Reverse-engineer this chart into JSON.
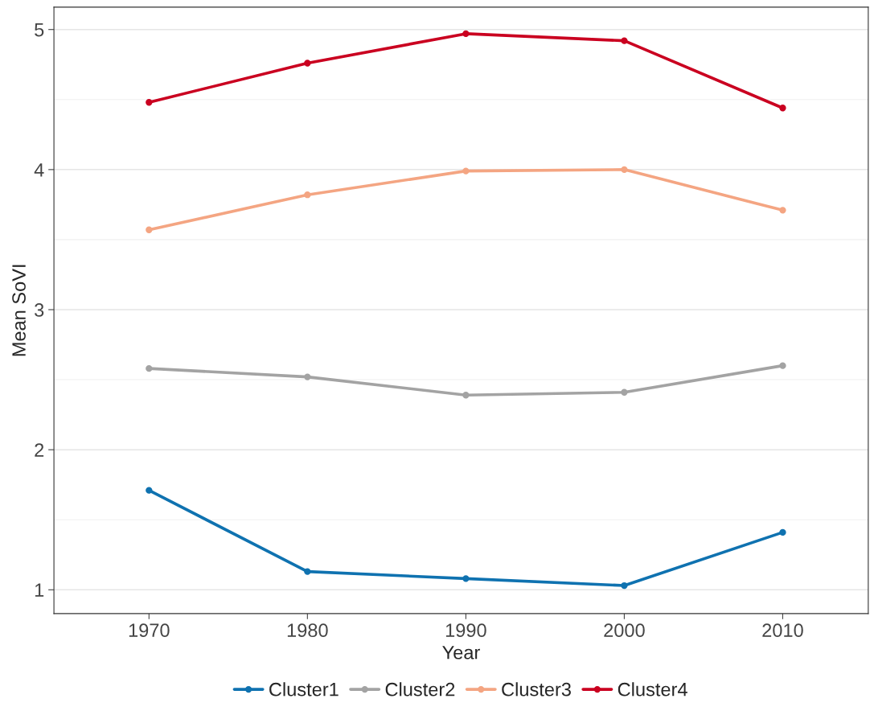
{
  "chart_data": {
    "type": "line",
    "xlabel": "Year",
    "ylabel": "Mean SoVI",
    "x": [
      1970,
      1980,
      1990,
      2000,
      2010
    ],
    "series": [
      {
        "name": "Cluster1",
        "color": "#0f72b0",
        "values": [
          1.71,
          1.13,
          1.08,
          1.03,
          1.41
        ]
      },
      {
        "name": "Cluster2",
        "color": "#a3a3a3",
        "values": [
          2.58,
          2.52,
          2.39,
          2.41,
          2.6
        ]
      },
      {
        "name": "Cluster3",
        "color": "#f4a582",
        "values": [
          3.57,
          3.82,
          3.99,
          4.0,
          3.71
        ]
      },
      {
        "name": "Cluster4",
        "color": "#ca0020",
        "values": [
          4.48,
          4.76,
          4.97,
          4.92,
          4.44
        ]
      }
    ],
    "xlim": [
      1964,
      2015.4
    ],
    "ylim": [
      0.83,
      5.16
    ],
    "xticks": [
      1970,
      1980,
      1990,
      2000,
      2010
    ],
    "yticks": [
      1,
      {
        "value": 1.5,
        "label": null
      },
      2,
      {
        "value": 2.5,
        "label": null
      },
      3,
      {
        "value": 3.5,
        "label": null
      },
      4,
      {
        "value": 4.5,
        "label": null
      },
      5
    ],
    "grid": "y",
    "legend": "bottom",
    "marker": "circle",
    "line_style": "solid"
  }
}
